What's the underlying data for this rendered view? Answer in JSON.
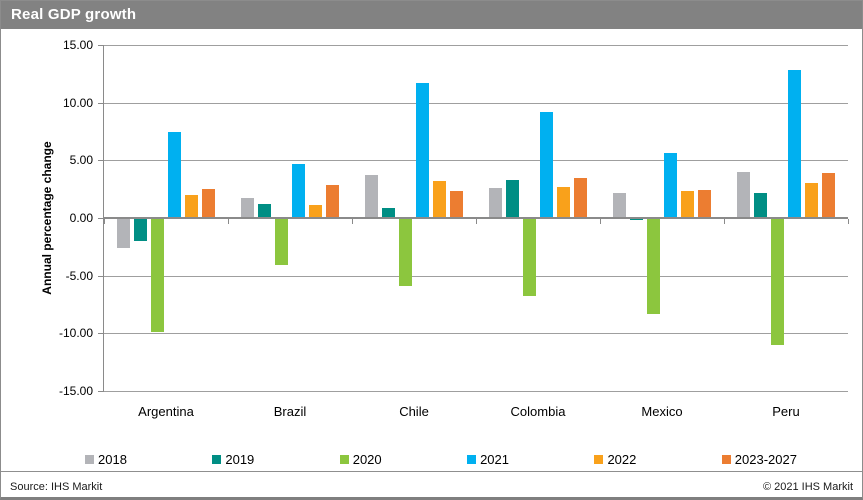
{
  "window": {
    "title": "Real GDP growth"
  },
  "footer": {
    "source": "Source: IHS Markit",
    "copyright": "© 2021  IHS Markit"
  },
  "colors": {
    "title_bar": "#828282",
    "grid": "#9f9f9f",
    "axis": "#8a8a8a",
    "series_2018": "#b3b4b8",
    "series_2019": "#008e84",
    "series_2020": "#8cc63e",
    "series_2021": "#00b0f0",
    "series_2022": "#f9a11b",
    "series_2023_2027": "#ec7d31"
  },
  "chart_data": {
    "type": "bar",
    "title": "Real GDP growth",
    "xlabel": "",
    "ylabel": "Annual percentage change",
    "ylim": [
      -15,
      15
    ],
    "ytick_step": 5,
    "ytick_labels": [
      "15.00",
      "10.00",
      "5.00",
      "0.00",
      "-5.00",
      "-10.00",
      "-15.00"
    ],
    "grid": true,
    "legend_position": "bottom",
    "categories": [
      "Argentina",
      "Brazil",
      "Chile",
      "Colombia",
      "Mexico",
      "Peru"
    ],
    "series": [
      {
        "name": "2018",
        "color": "#b3b4b8",
        "values": [
          -2.6,
          1.7,
          3.7,
          2.6,
          2.2,
          4.0
        ]
      },
      {
        "name": "2019",
        "color": "#008e84",
        "values": [
          -2.0,
          1.2,
          0.9,
          3.3,
          -0.2,
          2.2
        ]
      },
      {
        "name": "2020",
        "color": "#8cc63e",
        "values": [
          -9.9,
          -4.1,
          -5.9,
          -6.8,
          -8.3,
          -11.0
        ]
      },
      {
        "name": "2021",
        "color": "#00b0f0",
        "values": [
          7.5,
          4.7,
          11.7,
          9.2,
          5.6,
          12.8
        ]
      },
      {
        "name": "2022",
        "color": "#f9a11b",
        "values": [
          2.0,
          1.1,
          3.2,
          2.7,
          2.3,
          3.0
        ]
      },
      {
        "name": "2023-2027",
        "color": "#ec7d31",
        "values": [
          2.5,
          2.9,
          2.3,
          3.5,
          2.4,
          3.9
        ]
      }
    ]
  }
}
